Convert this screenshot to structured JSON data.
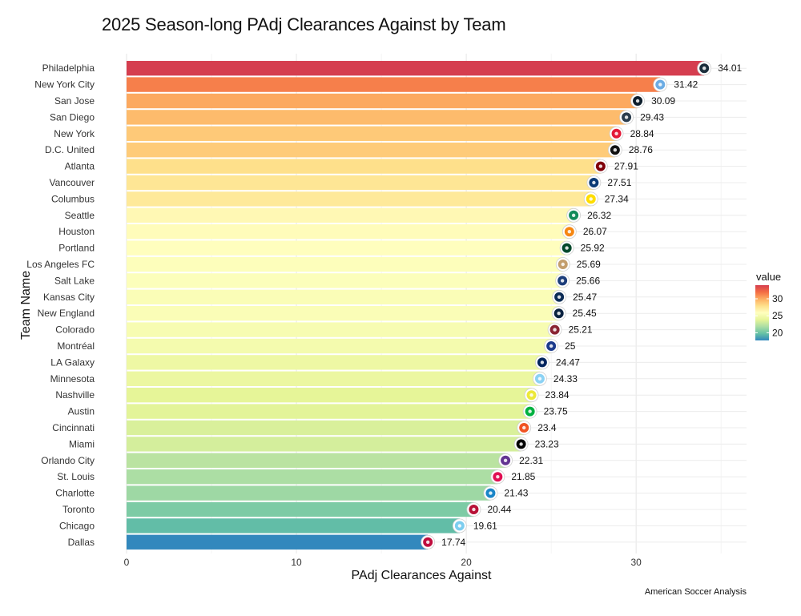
{
  "chart_data": {
    "type": "bar",
    "orientation": "horizontal",
    "title": "2025 Season-long PAdj Clearances Against by Team",
    "xlabel": "PAdj Clearances Against",
    "ylabel": "Team Name",
    "xlim": [
      0,
      36.5
    ],
    "xticks": [
      0,
      10,
      20,
      30
    ],
    "grid": true,
    "categories": [
      "Philadelphia",
      "New York City",
      "San Jose",
      "San Diego",
      "New York",
      "D.C. United",
      "Atlanta",
      "Vancouver",
      "Columbus",
      "Seattle",
      "Houston",
      "Portland",
      "Los Angeles FC",
      "Salt Lake",
      "Kansas City",
      "New England",
      "Colorado",
      "Montréal",
      "LA Galaxy",
      "Minnesota",
      "Nashville",
      "Austin",
      "Cincinnati",
      "Miami",
      "Orlando City",
      "St. Louis",
      "Charlotte",
      "Toronto",
      "Chicago",
      "Dallas"
    ],
    "values": [
      34.01,
      31.42,
      30.09,
      29.43,
      28.84,
      28.76,
      27.91,
      27.51,
      27.34,
      26.32,
      26.07,
      25.92,
      25.69,
      25.66,
      25.47,
      25.45,
      25.21,
      25,
      24.47,
      24.33,
      23.84,
      23.75,
      23.4,
      23.23,
      22.31,
      21.85,
      21.43,
      20.44,
      19.61,
      17.74
    ],
    "value_labels": [
      "34.01",
      "31.42",
      "30.09",
      "29.43",
      "28.84",
      "28.76",
      "27.91",
      "27.51",
      "27.34",
      "26.32",
      "26.07",
      "25.92",
      "25.69",
      "25.66",
      "25.47",
      "25.45",
      "25.21",
      "25",
      "24.47",
      "24.33",
      "23.84",
      "23.75",
      "23.4",
      "23.23",
      "22.31",
      "21.85",
      "21.43",
      "20.44",
      "19.61",
      "17.74"
    ],
    "badge_colors": [
      "#1b2e3c",
      "#6cace4",
      "#0d1e2c",
      "#2a3b4c",
      "#e31937",
      "#111111",
      "#80000a",
      "#0b3a75",
      "#fedd00",
      "#118a5a",
      "#f68712",
      "#00482b",
      "#c39e6d",
      "#1c3d7a",
      "#0c2c56",
      "#0a2240",
      "#8a2432",
      "#1b3a8c",
      "#00245d",
      "#8cd2f4",
      "#ece83a",
      "#00b140",
      "#f05323",
      "#000000",
      "#633492",
      "#e00e53",
      "#1a85c8",
      "#b81137",
      "#7ccdef",
      "#bf0d3e"
    ],
    "legend": {
      "title": "value",
      "ticks": [
        20,
        25,
        30
      ],
      "range": [
        17.74,
        34.01
      ],
      "placement": "right"
    },
    "colormap": [
      "#3288bd",
      "#66c2a5",
      "#abdda4",
      "#e6f598",
      "#ffffbf",
      "#fee08b",
      "#fdae61",
      "#f46d43",
      "#d53e4f"
    ]
  },
  "caption": "American Soccer Analysis"
}
